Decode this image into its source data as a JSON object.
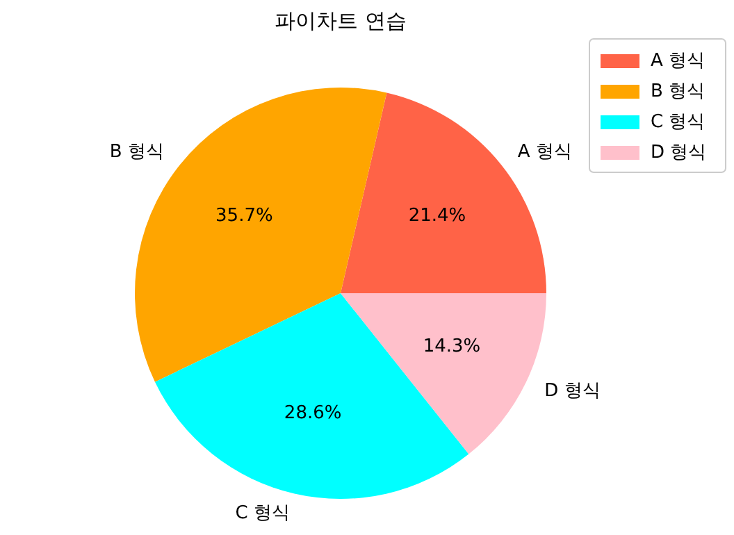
{
  "chart_data": {
    "type": "pie",
    "title": "파이차트 연습",
    "categories": [
      "A 형식",
      "B 형식",
      "C 형식",
      "D 형식"
    ],
    "values": [
      21.4,
      35.7,
      28.6,
      14.3
    ],
    "value_labels": [
      "21.4%",
      "35.7%",
      "28.6%",
      "14.3%"
    ],
    "colors": [
      "#ff6347",
      "#ffa500",
      "#00ffff",
      "#ffc0cb"
    ],
    "legend": "top right"
  }
}
